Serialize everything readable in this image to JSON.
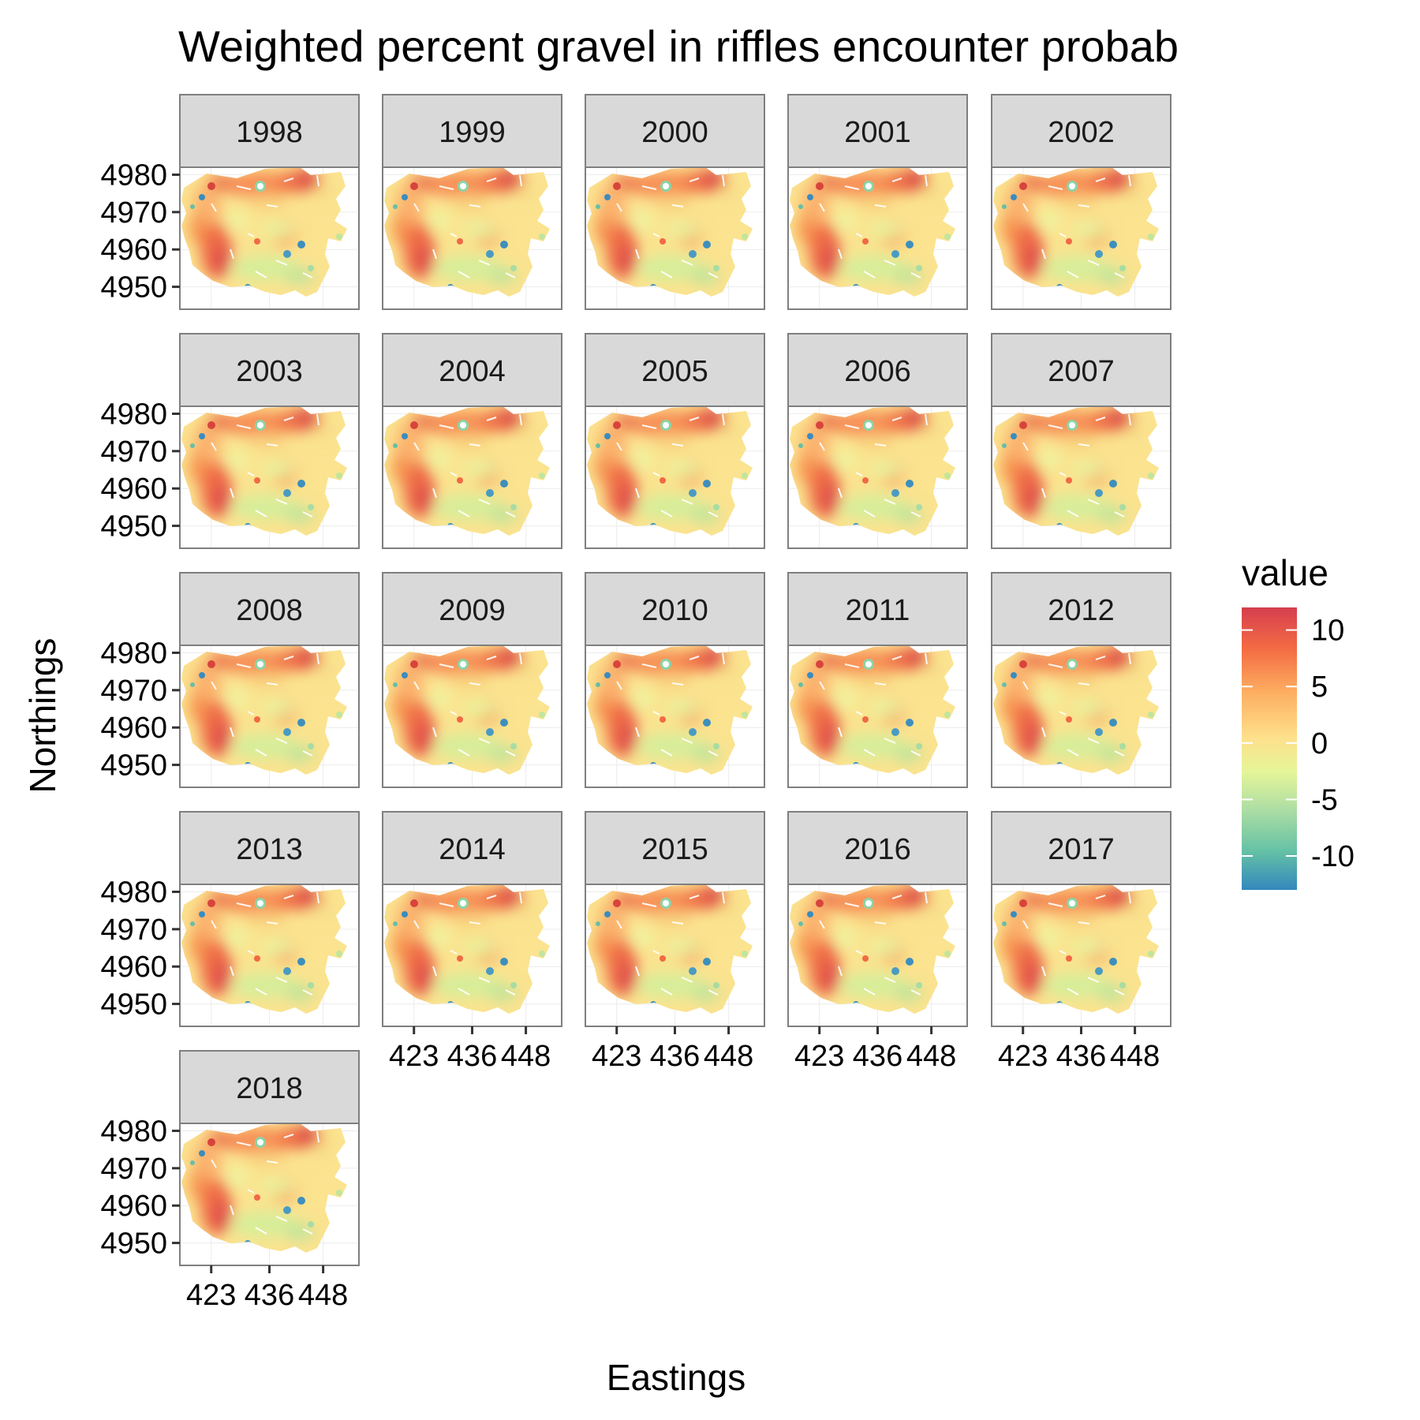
{
  "chart_data": {
    "type": "heatmap",
    "title": "Weighted percent gravel in riffles encounter probab",
    "xlabel": "Eastings",
    "ylabel": "Northings",
    "panels": [
      "1998",
      "1999",
      "2000",
      "2001",
      "2002",
      "2003",
      "2004",
      "2005",
      "2006",
      "2007",
      "2008",
      "2009",
      "2010",
      "2011",
      "2012",
      "2013",
      "2014",
      "2015",
      "2016",
      "2017",
      "2018"
    ],
    "x_ticks": [
      "423",
      "436",
      "448"
    ],
    "y_ticks": [
      "4950",
      "4960",
      "4970",
      "4980"
    ],
    "xlim": [
      416,
      456
    ],
    "ylim": [
      4944,
      4982
    ],
    "legend": {
      "title": "value",
      "ticks": [
        "10",
        "5",
        "0",
        "-5",
        "-10"
      ],
      "range": [
        -13,
        12
      ],
      "placement": "right",
      "colors": [
        "#3288bd",
        "#66c2a5",
        "#abdda4",
        "#e6f598",
        "#fee08b",
        "#fdae61",
        "#f46d43",
        "#d53e4f"
      ]
    },
    "grid": true
  }
}
